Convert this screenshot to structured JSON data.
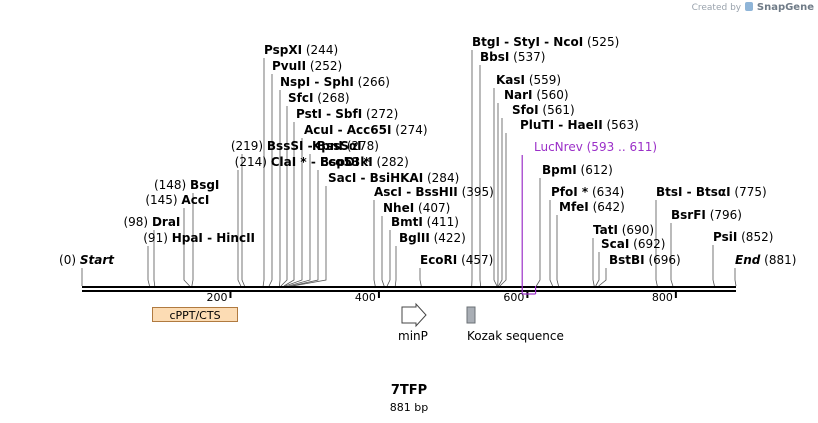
{
  "credit": {
    "prefix": "Created by",
    "brand": "SnapGene",
    "icon": "snapgene-logo-icon"
  },
  "plasmid": {
    "name": "7TFP",
    "length_label": "881 bp",
    "length": 881
  },
  "colors": {
    "primer": "#9b30c8",
    "feature_fill": "#fcdcb4",
    "feature_stroke": "#b07a40",
    "kozak_fill": "#a9aeb5"
  },
  "ruler": {
    "ticks": [
      200,
      400,
      600,
      800
    ]
  },
  "sites": [
    {
      "names": [
        "PspXI"
      ],
      "pos": "(244)",
      "cut": 244
    },
    {
      "names": [
        "PvuII"
      ],
      "pos": "(252)",
      "cut": 252
    },
    {
      "names": [
        "NspI",
        "SphI"
      ],
      "pos": "(266)",
      "cut": 266
    },
    {
      "names": [
        "SfcI"
      ],
      "pos": "(268)",
      "cut": 268
    },
    {
      "names": [
        "PstI",
        "SbfI"
      ],
      "pos": "(272)",
      "cut": 272
    },
    {
      "names": [
        "AcuI",
        "Acc65I"
      ],
      "pos": "(274)",
      "cut": 274
    },
    {
      "names": [
        "KpnI"
      ],
      "pos": "(278)",
      "cut": 278
    },
    {
      "names": [
        "Eco53kI"
      ],
      "pos": "(282)",
      "cut": 282
    },
    {
      "names": [
        "SacI",
        "BsiHKAI"
      ],
      "pos": "(284)",
      "cut": 284
    },
    {
      "names": [
        "BssSI",
        "BssSαI"
      ],
      "pos": "(219)",
      "cut": 219,
      "posLeft": true
    },
    {
      "names": [
        "ClaI *",
        "BspDI *"
      ],
      "pos": "(214)",
      "cut": 214,
      "posLeft": true
    },
    {
      "names": [
        "BsgI"
      ],
      "pos": "(148)",
      "cut": 148,
      "posLeft": true
    },
    {
      "names": [
        "AccI"
      ],
      "pos": "(145)",
      "cut": 145,
      "posLeft": true
    },
    {
      "names": [
        "DraI"
      ],
      "pos": "(98)",
      "cut": 98,
      "posLeft": true
    },
    {
      "names": [
        "HpaI",
        "HincII"
      ],
      "pos": "(91)",
      "cut": 91,
      "posLeft": true
    },
    {
      "names": [
        "Start"
      ],
      "pos": "(0)",
      "cut": 0,
      "posLeft": true,
      "italic": true
    },
    {
      "names": [
        "AscI",
        "BssHII"
      ],
      "pos": "(395)",
      "cut": 395
    },
    {
      "names": [
        "NheI"
      ],
      "pos": "(407)",
      "cut": 407
    },
    {
      "names": [
        "BmtI"
      ],
      "pos": "(411)",
      "cut": 411
    },
    {
      "names": [
        "BglII"
      ],
      "pos": "(422)",
      "cut": 422
    },
    {
      "names": [
        "EcoRI"
      ],
      "pos": "(457)",
      "cut": 457
    },
    {
      "names": [
        "BtgI",
        "StyI",
        "NcoI"
      ],
      "pos": "(525)",
      "cut": 525
    },
    {
      "names": [
        "BbsI"
      ],
      "pos": "(537)",
      "cut": 537
    },
    {
      "names": [
        "KasI"
      ],
      "pos": "(559)",
      "cut": 559
    },
    {
      "names": [
        "NarI"
      ],
      "pos": "(560)",
      "cut": 560
    },
    {
      "names": [
        "SfoI"
      ],
      "pos": "(561)",
      "cut": 561
    },
    {
      "names": [
        "PluTI",
        "HaeII"
      ],
      "pos": "(563)",
      "cut": 563
    },
    {
      "names": [
        "BpmI"
      ],
      "pos": "(612)",
      "cut": 612
    },
    {
      "names": [
        "PfoI *"
      ],
      "pos": "(634)",
      "cut": 634
    },
    {
      "names": [
        "MfeI"
      ],
      "pos": "(642)",
      "cut": 642
    },
    {
      "names": [
        "TatI"
      ],
      "pos": "(690)",
      "cut": 690
    },
    {
      "names": [
        "ScaI"
      ],
      "pos": "(692)",
      "cut": 692
    },
    {
      "names": [
        "BstBI"
      ],
      "pos": "(696)",
      "cut": 696
    },
    {
      "names": [
        "BtsI",
        "BtsαI"
      ],
      "pos": "(775)",
      "cut": 775
    },
    {
      "names": [
        "BsrFI"
      ],
      "pos": "(796)",
      "cut": 796
    },
    {
      "names": [
        "PsiI"
      ],
      "pos": "(852)",
      "cut": 852
    },
    {
      "names": [
        "End"
      ],
      "pos": "(881)",
      "cut": 881,
      "italic": true
    }
  ],
  "primer": {
    "name": "LucNrev",
    "range": "(593 .. 611)",
    "start": 593,
    "end": 611
  },
  "features": {
    "cppt": {
      "label": "cPPT/CTS",
      "start": 97,
      "end": 214
    },
    "minp": {
      "label": "minP",
      "start": 433,
      "end": 465
    },
    "kozak": {
      "label": "Kozak sequence",
      "start": 518,
      "end": 527
    }
  }
}
